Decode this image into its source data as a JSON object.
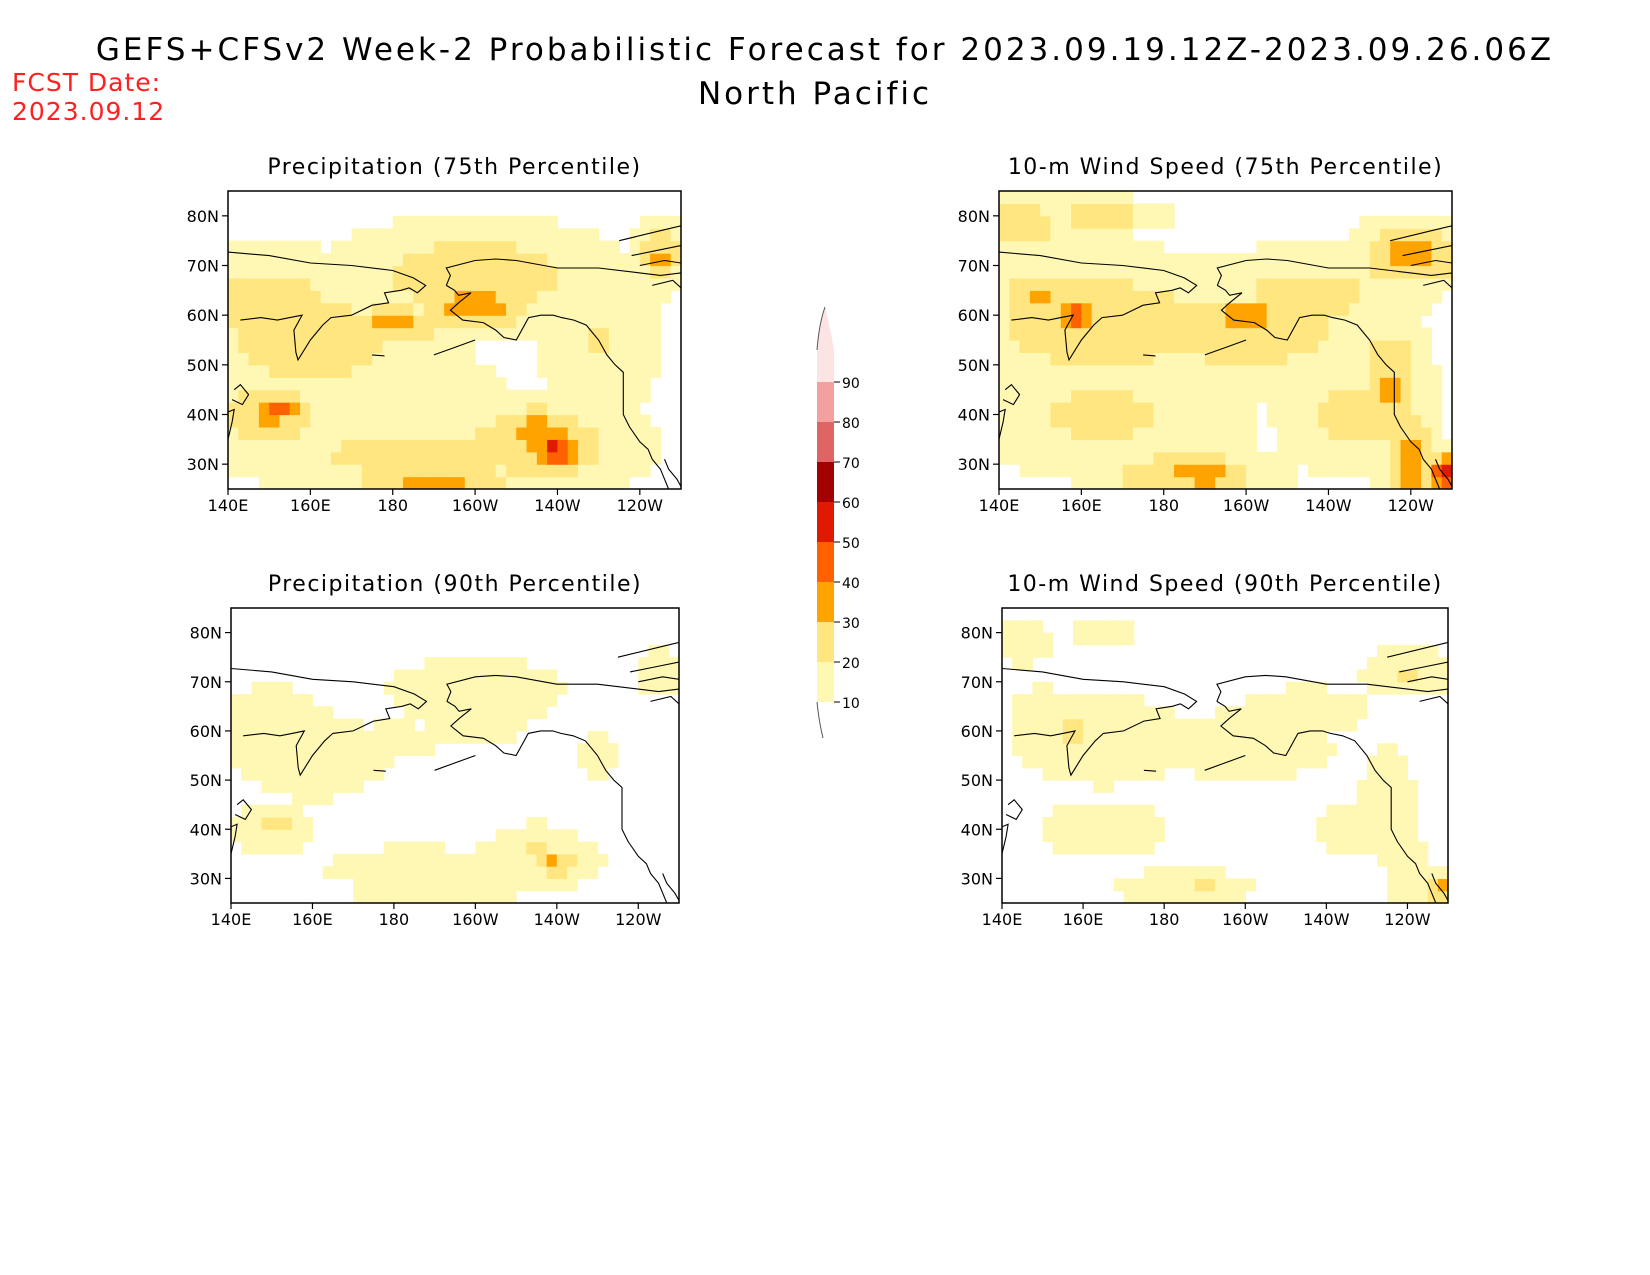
{
  "header": {
    "title": "GEFS+CFSv2 Week-2 Probabilistic Forecast for 2023.09.19.12Z-2023.09.26.06Z",
    "subtitle": "North Pacific",
    "fcst_date_label": "FCST Date:",
    "fcst_date": "2023.09.12"
  },
  "map_axes": {
    "lon_labels": [
      "140E",
      "160E",
      "180",
      "160W",
      "140W",
      "120W"
    ],
    "lat_labels": [
      "80N",
      "70N",
      "60N",
      "50N",
      "40N",
      "30N"
    ],
    "lon_range": [
      140,
      250
    ],
    "lat_range": [
      25,
      85
    ]
  },
  "panels": [
    {
      "title": "Precipitation (75th Percentile)",
      "variable": "precipitation",
      "percentile": 75,
      "prob_max": 60
    },
    {
      "title": "10-m Wind Speed (75th Percentile)",
      "variable": "wind",
      "percentile": 75,
      "prob_max": 60
    },
    {
      "title": "Precipitation (90th Percentile)",
      "variable": "precipitation",
      "percentile": 90,
      "prob_max": 30
    },
    {
      "title": "10-m Wind Speed (90th Percentile)",
      "variable": "wind",
      "percentile": 90,
      "prob_max": 30
    }
  ],
  "colorbar": {
    "levels": [
      "10",
      "20",
      "30",
      "40",
      "50",
      "60",
      "70",
      "80",
      "90"
    ],
    "colors": [
      "#fff8b4",
      "#ffe680",
      "#ffa300",
      "#ff6000",
      "#e01a00",
      "#a50000",
      "#e06464",
      "#f4a0a0",
      "#fde4e4"
    ]
  }
}
